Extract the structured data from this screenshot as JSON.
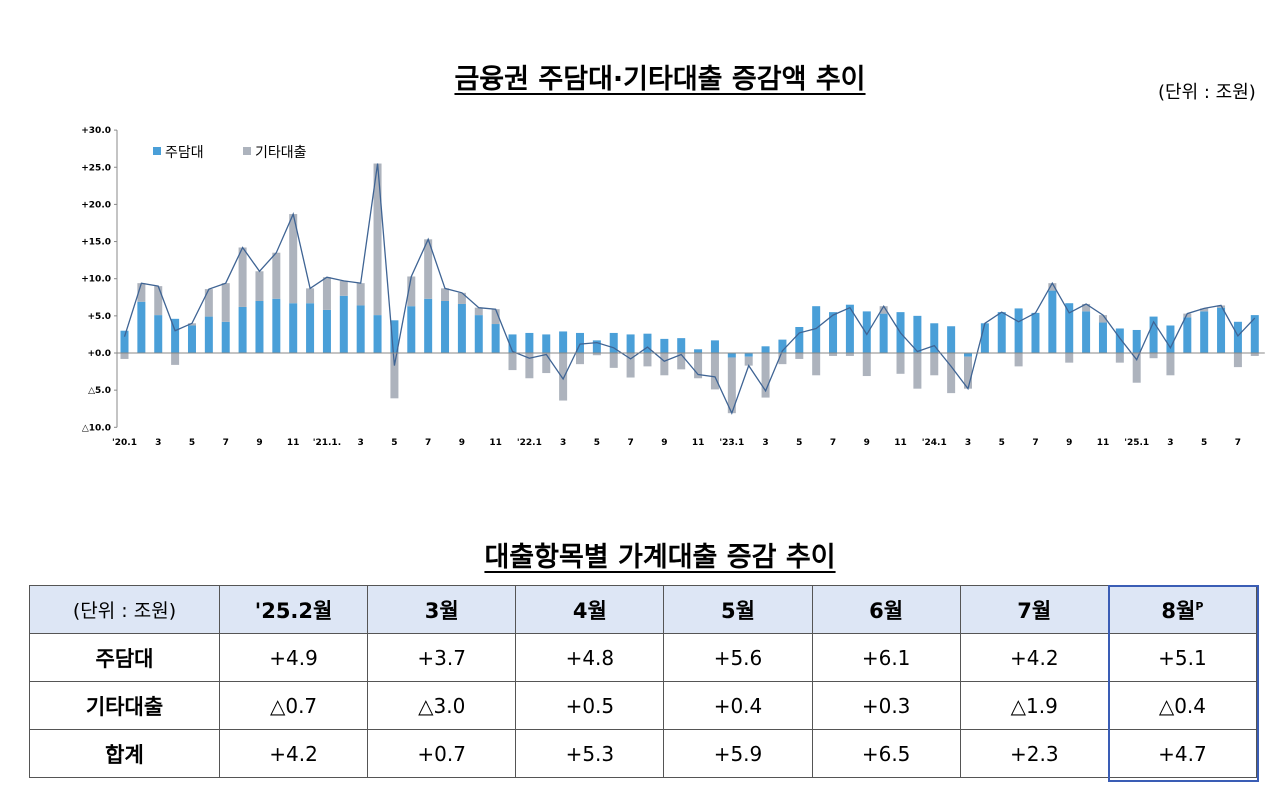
{
  "chart_title": "금융권 주담대·기타대출 증감액 추이",
  "chart_unit": "(단위 : 조원)",
  "colors": {
    "mortgage": "#4a9fd8",
    "other": "#adb3bd",
    "line": "#3f6494",
    "negative_tick": "#e0312b",
    "header_bg": "#dde6f5",
    "highlight": "#3a5db5"
  },
  "chart_data": {
    "type": "bar",
    "stacked": true,
    "series": [
      {
        "name": "주담대",
        "values": [
          3.0,
          6.9,
          5.1,
          4.6,
          3.7,
          4.9,
          4.2,
          6.2,
          7.0,
          7.3,
          6.7,
          6.7,
          5.8,
          7.7,
          6.4,
          5.1,
          4.4,
          6.3,
          7.3,
          7.0,
          6.6,
          5.1,
          3.9,
          2.5,
          2.7,
          2.5,
          2.9,
          2.7,
          1.7,
          2.7,
          2.5,
          2.6,
          1.9,
          2.0,
          0.5,
          1.7,
          -0.6,
          -0.5,
          0.9,
          1.8,
          3.5,
          6.3,
          5.5,
          6.5,
          5.6,
          5.3,
          5.5,
          5.0,
          4.0,
          3.6,
          -0.5,
          4.0,
          5.5,
          6.0,
          5.4,
          8.4,
          6.7,
          5.6,
          4.1,
          3.3,
          3.1,
          4.9,
          3.7,
          4.8,
          5.6,
          6.1,
          4.2,
          5.1
        ]
      },
      {
        "name": "기타대출",
        "values": [
          -0.8,
          2.5,
          3.9,
          -1.6,
          0.3,
          3.7,
          5.2,
          8.0,
          4.0,
          6.2,
          12.0,
          2.0,
          4.4,
          2.0,
          3.0,
          20.4,
          -6.1,
          4.0,
          8.0,
          1.7,
          1.5,
          1.0,
          2.0,
          -2.3,
          -3.4,
          -2.7,
          -6.4,
          -1.5,
          -0.3,
          -2.0,
          -3.3,
          -1.8,
          -3.0,
          -2.2,
          -3.4,
          -4.9,
          -7.5,
          -1.2,
          -6.0,
          -1.5,
          -0.8,
          -3.0,
          -0.4,
          -0.4,
          -3.1,
          1.0,
          -2.8,
          -4.8,
          -3.0,
          -5.4,
          -4.3,
          0.0,
          0.0,
          -1.8,
          0.0,
          1.0,
          -1.3,
          1.0,
          1.0,
          -1.3,
          -4.0,
          -0.7,
          -3.0,
          0.5,
          0.4,
          0.3,
          -1.9,
          -0.4
        ]
      }
    ],
    "x_tick_labels": [
      "'20.1",
      "3",
      "5",
      "7",
      "9",
      "11",
      "'21.1.",
      "3",
      "5",
      "7",
      "9",
      "11",
      "'22.1",
      "3",
      "5",
      "7",
      "9",
      "11",
      "'23.1",
      "3",
      "5",
      "7",
      "9",
      "11",
      "'24.1",
      "3",
      "5",
      "7",
      "9",
      "11",
      "'25.1",
      "3",
      "5",
      "7"
    ],
    "y_tick_labels": [
      "+30.0",
      "+25.0",
      "+20.0",
      "+15.0",
      "+10.0",
      "+5.0",
      "+0.0",
      "△5.0",
      "△10.0"
    ],
    "y_ticks": [
      30,
      25,
      20,
      15,
      10,
      5,
      0,
      -5,
      -10
    ],
    "ylim": [
      -10,
      30
    ],
    "legend": [
      "주담대",
      "기타대출"
    ],
    "legend_position": "top-left",
    "total_line": true
  },
  "table_title": "대출항목별 가계대출 증감 추이",
  "table": {
    "unit_label": "(단위 : 조원)",
    "columns": [
      "'25.2월",
      "3월",
      "4월",
      "5월",
      "6월",
      "7월",
      "8월"
    ],
    "last_column_sup": "P",
    "rows": [
      {
        "label": "주담대",
        "values": [
          "+4.9",
          "+3.7",
          "+4.8",
          "+5.6",
          "+6.1",
          "+4.2",
          "+5.1"
        ]
      },
      {
        "label": "기타대출",
        "values": [
          "△0.7",
          "△3.0",
          "+0.5",
          "+0.4",
          "+0.3",
          "△1.9",
          "△0.4"
        ]
      },
      {
        "label": "합계",
        "values": [
          "+4.2",
          "+0.7",
          "+5.3",
          "+5.9",
          "+6.5",
          "+2.3",
          "+4.7"
        ]
      }
    ]
  }
}
